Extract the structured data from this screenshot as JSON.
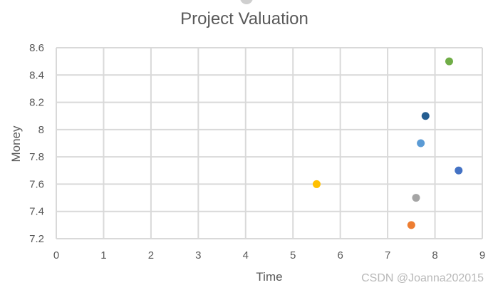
{
  "watermark": "CSDN @Joanna202015",
  "chart_data": {
    "type": "scatter",
    "title": "Project Valuation",
    "xlabel": "Time",
    "ylabel": "Money",
    "xlim": [
      0,
      9
    ],
    "ylim": [
      7.2,
      8.6
    ],
    "xticks": [
      "0",
      "1",
      "2",
      "3",
      "4",
      "5",
      "6",
      "7",
      "8",
      "9"
    ],
    "yticks": [
      "7.2",
      "7.4",
      "7.6",
      "7.8",
      "8",
      "8.2",
      "8.4",
      "8.6"
    ],
    "grid": true,
    "legend": "none",
    "points": [
      {
        "x": 5.5,
        "y": 7.6,
        "color": "#FFC000"
      },
      {
        "x": 7.5,
        "y": 7.3,
        "color": "#ED7D31"
      },
      {
        "x": 7.6,
        "y": 7.5,
        "color": "#A5A5A5"
      },
      {
        "x": 7.7,
        "y": 7.9,
        "color": "#5B9BD5"
      },
      {
        "x": 7.8,
        "y": 8.1,
        "color": "#255E91"
      },
      {
        "x": 8.3,
        "y": 8.5,
        "color": "#70AD47"
      },
      {
        "x": 8.5,
        "y": 7.7,
        "color": "#4472C4"
      }
    ]
  }
}
